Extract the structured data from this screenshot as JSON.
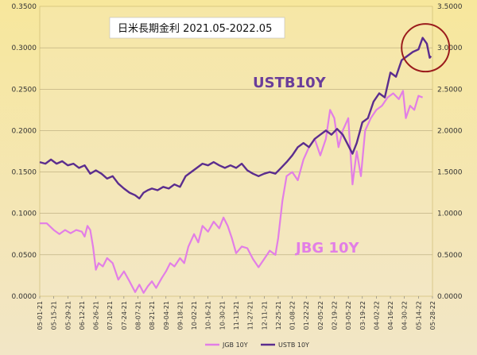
{
  "chart_data": {
    "type": "line",
    "title": "日米長期金利 2021.05-2022.05",
    "left_axis": {
      "min": 0,
      "max": 0.35,
      "ticks": [
        "0.0000",
        "0.0500",
        "0.1000",
        "0.1500",
        "0.2000",
        "0.2500",
        "0.3000",
        "0.3500"
      ]
    },
    "right_axis": {
      "min": 0,
      "max": 3.5,
      "ticks": [
        "0.0000",
        "0.5000",
        "1.0000",
        "1.5000",
        "2.0000",
        "2.5000",
        "3.0000",
        "3.5000"
      ]
    },
    "x_tick_labels": [
      "05-01-21",
      "05-15-21",
      "05-29-21",
      "06-12-21",
      "06-26-21",
      "07-10-21",
      "07-24-21",
      "08-07-21",
      "08-21-21",
      "09-04-21",
      "09-18-21",
      "10-02-21",
      "10-16-21",
      "10-30-21",
      "11-13-21",
      "11-27-21",
      "12-11-21",
      "12-25-21",
      "01-08-22",
      "01-22-22",
      "02-05-22",
      "02-19-22",
      "03-05-22",
      "03-19-22",
      "04-02-22",
      "04-16-22",
      "04-30-22",
      "05-14-22",
      "05-28-22"
    ],
    "grid": true,
    "legend_position": "bottom",
    "series": [
      {
        "name": "JGB 10Y",
        "axis": "left",
        "color": "#e27ee6",
        "points": [
          [
            0,
            0.088
          ],
          [
            0.5,
            0.088
          ],
          [
            1,
            0.08
          ],
          [
            1.4,
            0.075
          ],
          [
            1.8,
            0.08
          ],
          [
            2.2,
            0.076
          ],
          [
            2.6,
            0.08
          ],
          [
            3,
            0.078
          ],
          [
            3.2,
            0.072
          ],
          [
            3.4,
            0.085
          ],
          [
            3.6,
            0.08
          ],
          [
            3.8,
            0.06
          ],
          [
            4,
            0.032
          ],
          [
            4.2,
            0.04
          ],
          [
            4.5,
            0.036
          ],
          [
            4.8,
            0.046
          ],
          [
            5.2,
            0.04
          ],
          [
            5.6,
            0.02
          ],
          [
            6,
            0.03
          ],
          [
            6.4,
            0.018
          ],
          [
            6.8,
            0.005
          ],
          [
            7.1,
            0.014
          ],
          [
            7.4,
            0.004
          ],
          [
            7.7,
            0.012
          ],
          [
            8,
            0.018
          ],
          [
            8.3,
            0.01
          ],
          [
            8.7,
            0.022
          ],
          [
            9,
            0.03
          ],
          [
            9.3,
            0.04
          ],
          [
            9.6,
            0.036
          ],
          [
            10,
            0.046
          ],
          [
            10.3,
            0.04
          ],
          [
            10.6,
            0.06
          ],
          [
            11,
            0.075
          ],
          [
            11.3,
            0.065
          ],
          [
            11.6,
            0.085
          ],
          [
            12,
            0.078
          ],
          [
            12.4,
            0.09
          ],
          [
            12.8,
            0.082
          ],
          [
            13.1,
            0.095
          ],
          [
            13.4,
            0.085
          ],
          [
            13.7,
            0.07
          ],
          [
            14,
            0.052
          ],
          [
            14.4,
            0.06
          ],
          [
            14.8,
            0.058
          ],
          [
            15.2,
            0.045
          ],
          [
            15.6,
            0.035
          ],
          [
            16,
            0.045
          ],
          [
            16.4,
            0.055
          ],
          [
            16.8,
            0.05
          ],
          [
            17,
            0.07
          ],
          [
            17.3,
            0.115
          ],
          [
            17.6,
            0.145
          ],
          [
            18,
            0.15
          ],
          [
            18.4,
            0.14
          ],
          [
            18.8,
            0.165
          ],
          [
            19.2,
            0.18
          ],
          [
            19.6,
            0.19
          ],
          [
            20,
            0.17
          ],
          [
            20.4,
            0.19
          ],
          [
            20.7,
            0.225
          ],
          [
            21,
            0.215
          ],
          [
            21.3,
            0.18
          ],
          [
            21.6,
            0.2
          ],
          [
            22,
            0.215
          ],
          [
            22.3,
            0.135
          ],
          [
            22.6,
            0.175
          ],
          [
            22.9,
            0.145
          ],
          [
            23.2,
            0.2
          ],
          [
            23.6,
            0.215
          ],
          [
            24,
            0.225
          ],
          [
            24.4,
            0.23
          ],
          [
            24.8,
            0.24
          ],
          [
            25.2,
            0.245
          ],
          [
            25.6,
            0.238
          ],
          [
            25.9,
            0.248
          ],
          [
            26.1,
            0.215
          ],
          [
            26.4,
            0.23
          ],
          [
            26.7,
            0.225
          ],
          [
            27,
            0.242
          ],
          [
            27.3,
            0.24
          ]
        ]
      },
      {
        "name": "USTB 10Y",
        "axis": "right",
        "color": "#5b2d8e",
        "points": [
          [
            0,
            1.62
          ],
          [
            0.4,
            1.6
          ],
          [
            0.8,
            1.65
          ],
          [
            1.2,
            1.6
          ],
          [
            1.6,
            1.63
          ],
          [
            2,
            1.58
          ],
          [
            2.4,
            1.6
          ],
          [
            2.8,
            1.55
          ],
          [
            3.2,
            1.58
          ],
          [
            3.6,
            1.48
          ],
          [
            4,
            1.52
          ],
          [
            4.4,
            1.48
          ],
          [
            4.8,
            1.42
          ],
          [
            5.2,
            1.45
          ],
          [
            5.6,
            1.36
          ],
          [
            6,
            1.3
          ],
          [
            6.4,
            1.25
          ],
          [
            6.8,
            1.22
          ],
          [
            7.1,
            1.18
          ],
          [
            7.4,
            1.25
          ],
          [
            7.7,
            1.28
          ],
          [
            8,
            1.3
          ],
          [
            8.4,
            1.28
          ],
          [
            8.8,
            1.32
          ],
          [
            9.2,
            1.3
          ],
          [
            9.6,
            1.35
          ],
          [
            10,
            1.32
          ],
          [
            10.4,
            1.45
          ],
          [
            10.8,
            1.5
          ],
          [
            11.2,
            1.55
          ],
          [
            11.6,
            1.6
          ],
          [
            12,
            1.58
          ],
          [
            12.4,
            1.62
          ],
          [
            12.8,
            1.58
          ],
          [
            13.2,
            1.55
          ],
          [
            13.6,
            1.58
          ],
          [
            14,
            1.55
          ],
          [
            14.4,
            1.6
          ],
          [
            14.8,
            1.52
          ],
          [
            15.2,
            1.48
          ],
          [
            15.6,
            1.45
          ],
          [
            16,
            1.48
          ],
          [
            16.4,
            1.5
          ],
          [
            16.8,
            1.48
          ],
          [
            17.2,
            1.55
          ],
          [
            17.6,
            1.62
          ],
          [
            18,
            1.7
          ],
          [
            18.4,
            1.8
          ],
          [
            18.8,
            1.85
          ],
          [
            19.2,
            1.8
          ],
          [
            19.6,
            1.9
          ],
          [
            20,
            1.95
          ],
          [
            20.4,
            2.0
          ],
          [
            20.8,
            1.95
          ],
          [
            21.2,
            2.02
          ],
          [
            21.6,
            1.95
          ],
          [
            22,
            1.82
          ],
          [
            22.3,
            1.72
          ],
          [
            22.6,
            1.85
          ],
          [
            23,
            2.1
          ],
          [
            23.4,
            2.15
          ],
          [
            23.8,
            2.35
          ],
          [
            24.2,
            2.45
          ],
          [
            24.6,
            2.4
          ],
          [
            25,
            2.7
          ],
          [
            25.4,
            2.65
          ],
          [
            25.8,
            2.85
          ],
          [
            26.2,
            2.9
          ],
          [
            26.6,
            2.95
          ],
          [
            27,
            2.98
          ],
          [
            27.3,
            3.12
          ],
          [
            27.6,
            3.05
          ],
          [
            27.8,
            2.88
          ],
          [
            27.9,
            2.9
          ]
        ]
      }
    ],
    "annotations": [
      {
        "text": "USTB10Y",
        "series": "USTB 10Y"
      },
      {
        "text": "JBG 10Y",
        "series": "JGB 10Y"
      }
    ],
    "highlight_circle": {
      "x": 27.5,
      "y_right": 3.0
    }
  }
}
